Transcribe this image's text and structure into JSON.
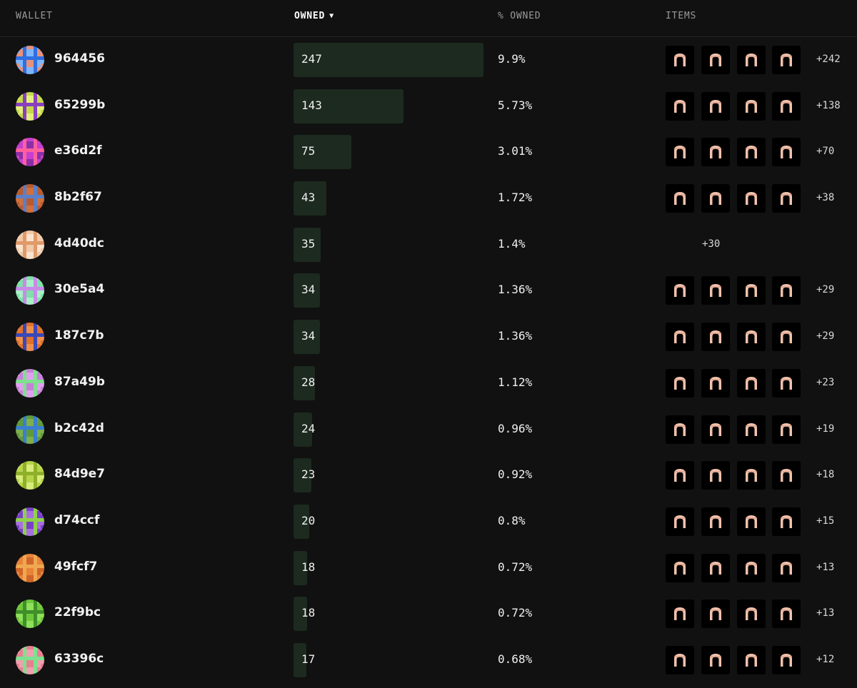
{
  "header": {
    "wallet": "WALLET",
    "owned": "OWNED",
    "pct_owned": "% OWNED",
    "items": "ITEMS"
  },
  "icons": {
    "sort": "chevron-down-icon",
    "item": "arch-icon"
  },
  "max_owned": 247,
  "rows": [
    {
      "wallet": "964456",
      "owned": "247",
      "owned_num": 247,
      "pct": "9.9%",
      "items_shown": 4,
      "more": "+242",
      "avatar_colors": [
        "#e8917a",
        "#2f6fe0",
        "#7fb6ff"
      ]
    },
    {
      "wallet": "65299b",
      "owned": "143",
      "owned_num": 143,
      "pct": "5.73%",
      "items_shown": 4,
      "more": "+138",
      "avatar_colors": [
        "#c6d94a",
        "#8a3fbf",
        "#e3f07a"
      ]
    },
    {
      "wallet": "e36d2f",
      "owned": "75",
      "owned_num": 75,
      "pct": "3.01%",
      "items_shown": 4,
      "more": "+70",
      "avatar_colors": [
        "#c63fd0",
        "#ff5f9e",
        "#8a2fa8"
      ]
    },
    {
      "wallet": "8b2f67",
      "owned": "43",
      "owned_num": 43,
      "pct": "1.72%",
      "items_shown": 4,
      "more": "+38",
      "avatar_colors": [
        "#b85a2e",
        "#5c7fc8",
        "#d1703a"
      ]
    },
    {
      "wallet": "4d40dc",
      "owned": "35",
      "owned_num": 35,
      "pct": "1.4%",
      "items_shown": 0,
      "more": "+30",
      "avatar_colors": [
        "#f1c9a8",
        "#e09a6a",
        "#fbe3cf"
      ]
    },
    {
      "wallet": "30e5a4",
      "owned": "34",
      "owned_num": 34,
      "pct": "1.36%",
      "items_shown": 4,
      "more": "+29",
      "avatar_colors": [
        "#7fe0a8",
        "#c88be8",
        "#a8f0c8"
      ]
    },
    {
      "wallet": "187c7b",
      "owned": "34",
      "owned_num": 34,
      "pct": "1.36%",
      "items_shown": 4,
      "more": "+29",
      "avatar_colors": [
        "#e0702a",
        "#3a48b8",
        "#f08f4a"
      ]
    },
    {
      "wallet": "87a49b",
      "owned": "28",
      "owned_num": 28,
      "pct": "1.12%",
      "items_shown": 4,
      "more": "+23",
      "avatar_colors": [
        "#c87fd8",
        "#7fe08f",
        "#e0a0ee"
      ]
    },
    {
      "wallet": "b2c42d",
      "owned": "24",
      "owned_num": 24,
      "pct": "0.96%",
      "items_shown": 4,
      "more": "+19",
      "avatar_colors": [
        "#5f9a3a",
        "#3a7fd0",
        "#7fb04a"
      ]
    },
    {
      "wallet": "84d9e7",
      "owned": "23",
      "owned_num": 23,
      "pct": "0.92%",
      "items_shown": 4,
      "more": "+18",
      "avatar_colors": [
        "#b8d44a",
        "#8fb02a",
        "#d8ec7a"
      ]
    },
    {
      "wallet": "d74ccf",
      "owned": "20",
      "owned_num": 20,
      "pct": "0.8%",
      "items_shown": 4,
      "more": "+15",
      "avatar_colors": [
        "#7a3fc8",
        "#8fd04a",
        "#a86fe0"
      ]
    },
    {
      "wallet": "49fcf7",
      "owned": "18",
      "owned_num": 18,
      "pct": "0.72%",
      "items_shown": 4,
      "more": "+13",
      "avatar_colors": [
        "#e8843a",
        "#f0a850",
        "#d0652a"
      ]
    },
    {
      "wallet": "22f9bc",
      "owned": "18",
      "owned_num": 18,
      "pct": "0.72%",
      "items_shown": 4,
      "more": "+13",
      "avatar_colors": [
        "#6fc83a",
        "#3f8f2a",
        "#8fe05a"
      ]
    },
    {
      "wallet": "63396c",
      "owned": "17",
      "owned_num": 17,
      "pct": "0.68%",
      "items_shown": 4,
      "more": "+12",
      "avatar_colors": [
        "#e87f8f",
        "#7fe08f",
        "#f0a0ae"
      ]
    }
  ]
}
